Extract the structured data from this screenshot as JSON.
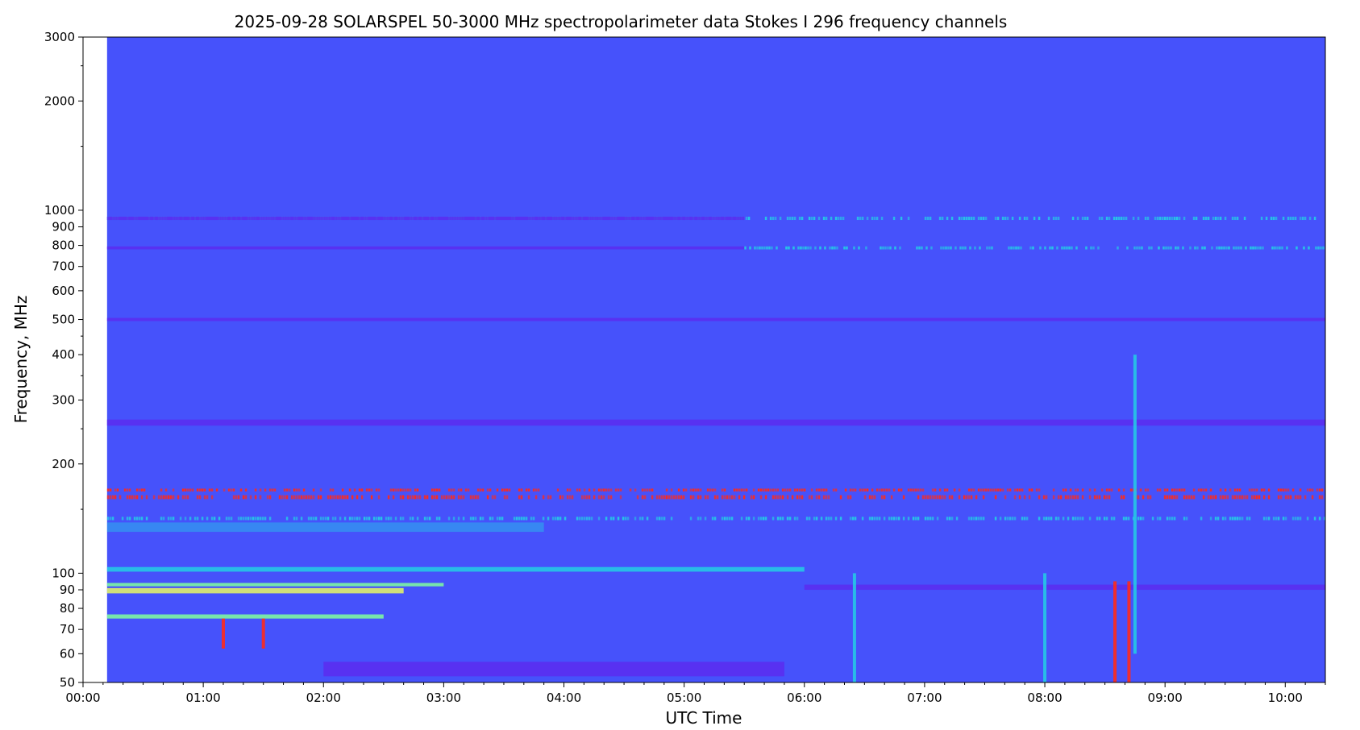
{
  "chart_data": {
    "type": "heatmap",
    "title": "2025-09-28      SOLARSPEL   50-3000 MHz spectropolarimeter data      Stokes I   296 frequency channels",
    "xlabel": "UTC Time",
    "ylabel": "Frequency, MHz",
    "x_scale": "time",
    "y_scale": "log",
    "xlim": [
      "00:00",
      "10:20"
    ],
    "ylim": [
      50,
      3000
    ],
    "data_start": "00:12",
    "x_ticks": [
      "00:00",
      "01:00",
      "02:00",
      "03:00",
      "04:00",
      "05:00",
      "06:00",
      "07:00",
      "08:00",
      "09:00",
      "10:00"
    ],
    "y_ticks": [
      {
        "value": 50,
        "label": "50"
      },
      {
        "value": 60,
        "label": "60"
      },
      {
        "value": 70,
        "label": "70"
      },
      {
        "value": 80,
        "label": "80"
      },
      {
        "value": 90,
        "label": "90"
      },
      {
        "value": 100,
        "label": "100"
      },
      {
        "value": 200,
        "label": "200"
      },
      {
        "value": 300,
        "label": "300"
      },
      {
        "value": 400,
        "label": "400"
      },
      {
        "value": 500,
        "label": "500"
      },
      {
        "value": 600,
        "label": "600"
      },
      {
        "value": 700,
        "label": "700"
      },
      {
        "value": 800,
        "label": "800"
      },
      {
        "value": 900,
        "label": "900"
      },
      {
        "value": 1000,
        "label": "1000"
      },
      {
        "value": 2000,
        "label": "2000"
      },
      {
        "value": 3000,
        "label": "3000"
      }
    ],
    "y_minor_ticks": [
      150,
      250,
      350,
      450,
      1500,
      2500
    ],
    "colors": {
      "background": "#4652fb",
      "dark_band": "#5a2df0",
      "cyan": "#25c8e6",
      "green": "#7cf5a2",
      "yellow": "#dff06a",
      "red": "#ff2a1a"
    },
    "bands": [
      {
        "f_lo": 160,
        "f_hi": 164,
        "t_start": "00:12",
        "t_end": "10:20",
        "color": "#ff2a1a",
        "style": "speckle"
      },
      {
        "f_lo": 168,
        "f_hi": 171,
        "t_start": "00:12",
        "t_end": "10:20",
        "color": "#ff2a1a",
        "style": "speckle"
      },
      {
        "f_lo": 140,
        "f_hi": 143,
        "t_start": "00:12",
        "t_end": "10:20",
        "color": "#25c8e6",
        "style": "speckle"
      },
      {
        "f_lo": 130,
        "f_hi": 138,
        "t_start": "00:12",
        "t_end": "03:50",
        "color": "#25c8e6",
        "style": "haze"
      },
      {
        "f_lo": 101,
        "f_hi": 104,
        "t_start": "00:12",
        "t_end": "06:00",
        "color": "#25c8e6",
        "style": "solid"
      },
      {
        "f_lo": 92,
        "f_hi": 94,
        "t_start": "00:12",
        "t_end": "03:00",
        "color": "#7cf5a2",
        "style": "solid"
      },
      {
        "f_lo": 88,
        "f_hi": 91,
        "t_start": "00:12",
        "t_end": "02:40",
        "color": "#dff06a",
        "style": "solid"
      },
      {
        "f_lo": 75,
        "f_hi": 77,
        "t_start": "00:12",
        "t_end": "02:30",
        "color": "#7cf5a2",
        "style": "solid"
      },
      {
        "f_lo": 940,
        "f_hi": 960,
        "t_start": "00:12",
        "t_end": "10:20",
        "color": "#25c8e6",
        "style": "speckle"
      },
      {
        "f_lo": 780,
        "f_hi": 795,
        "t_start": "05:30",
        "t_end": "10:20",
        "color": "#25c8e6",
        "style": "speckle"
      },
      {
        "f_lo": 940,
        "f_hi": 960,
        "t_start": "00:12",
        "t_end": "05:30",
        "color": "#5a2df0",
        "style": "solid"
      },
      {
        "f_lo": 780,
        "f_hi": 795,
        "t_start": "00:12",
        "t_end": "05:30",
        "color": "#5a2df0",
        "style": "solid"
      },
      {
        "f_lo": 495,
        "f_hi": 505,
        "t_start": "00:12",
        "t_end": "10:20",
        "color": "#5a2df0",
        "style": "solid"
      },
      {
        "f_lo": 255,
        "f_hi": 265,
        "t_start": "00:12",
        "t_end": "10:20",
        "color": "#5a2df0",
        "style": "solid"
      },
      {
        "f_lo": 90,
        "f_hi": 93,
        "t_start": "06:00",
        "t_end": "10:20",
        "color": "#5a2df0",
        "style": "solid"
      },
      {
        "f_lo": 52,
        "f_hi": 57,
        "t_start": "02:00",
        "t_end": "05:50",
        "color": "#5a2df0",
        "style": "solid"
      }
    ],
    "bursts": [
      {
        "t": "08:35",
        "f_lo": 50,
        "f_hi": 95,
        "color": "#ff2a1a"
      },
      {
        "t": "08:42",
        "f_lo": 50,
        "f_hi": 95,
        "color": "#ff2a1a"
      },
      {
        "t": "08:45",
        "f_lo": 60,
        "f_hi": 400,
        "color": "#25c8e6"
      },
      {
        "t": "08:00",
        "f_lo": 50,
        "f_hi": 100,
        "color": "#25c8e6"
      },
      {
        "t": "06:25",
        "f_lo": 50,
        "f_hi": 100,
        "color": "#25c8e6"
      },
      {
        "t": "01:10",
        "f_lo": 62,
        "f_hi": 75,
        "color": "#ff2a1a"
      },
      {
        "t": "01:30",
        "f_lo": 62,
        "f_hi": 75,
        "color": "#ff2a1a"
      }
    ]
  }
}
